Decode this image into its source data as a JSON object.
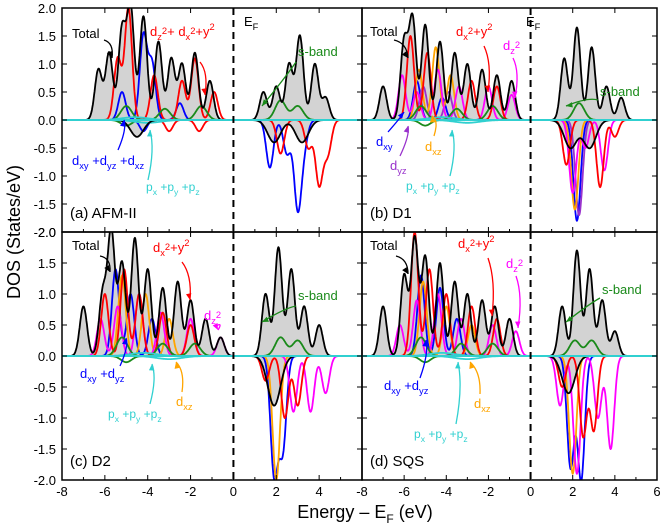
{
  "figure": {
    "ylabel": "DOS (States/eV)",
    "xlabel": "Energy – E",
    "xlabel_sub": "F",
    "xlabel_unit": " (eV)",
    "fermi_label": "E",
    "fermi_sub": "F"
  },
  "colors": {
    "total": "#000000",
    "total_fill": "#d3d3d3",
    "s": "#1a8a1a",
    "dz2": "#ff00ff",
    "dx2y2": "#ff0000",
    "dxy": "#0000ff",
    "dyz": "#9932cc",
    "dxz": "#ffa500",
    "p": "#30d0d0"
  },
  "chart_data": [
    {
      "type": "line",
      "panel_label": "(a) AFM-II",
      "x_range": [
        -8,
        6
      ],
      "ylim": [
        -2.0,
        2.0
      ],
      "xticks": [
        -8,
        -6,
        -4,
        -2,
        0,
        2,
        4,
        6
      ],
      "yticks": [
        "2.0",
        "1.5",
        "1.0",
        "0.5",
        "0.0",
        "-0.5",
        "-1.0",
        "-1.5",
        "-2.0"
      ],
      "fermi_level": 0,
      "peaks": {
        "total_up": [
          [
            -6.3,
            0.9
          ],
          [
            -5.8,
            1.2
          ],
          [
            -5.2,
            1.6
          ],
          [
            -4.8,
            2.0
          ],
          [
            -4.2,
            1.85
          ],
          [
            -3.5,
            1.4
          ],
          [
            -2.9,
            1.1
          ],
          [
            -2.4,
            1.0
          ],
          [
            -1.8,
            1.2
          ],
          [
            -1.1,
            0.7
          ],
          [
            1.4,
            0.5
          ],
          [
            2.0,
            0.6
          ],
          [
            2.6,
            1.0
          ],
          [
            3.1,
            1.5
          ],
          [
            3.8,
            1.0
          ],
          [
            4.3,
            0.4
          ]
        ],
        "total_down": [
          [
            -4.5,
            -0.3
          ],
          [
            1.9,
            -0.4
          ],
          [
            3.2,
            -0.4
          ]
        ],
        "s_up": [
          [
            -5.0,
            0.25
          ],
          [
            -3.2,
            0.2
          ],
          [
            -1.5,
            0.25
          ],
          [
            2.2,
            0.35
          ],
          [
            3.0,
            0.25
          ]
        ],
        "s_down": [
          [
            -5.0,
            -0.1
          ]
        ],
        "eg_up": [
          [
            -5.4,
            1.1
          ],
          [
            -4.9,
            2.0
          ],
          [
            -3.7,
            0.8
          ],
          [
            -2.4,
            0.7
          ],
          [
            -1.8,
            1.1
          ],
          [
            -0.9,
            0.5
          ]
        ],
        "eg_down": [
          [
            -3.0,
            -0.2
          ],
          [
            -1.6,
            -0.2
          ],
          [
            2.2,
            -0.6
          ],
          [
            3.5,
            -0.5
          ],
          [
            4.0,
            -1.15
          ],
          [
            4.4,
            -0.6
          ]
        ],
        "t2g_up": [
          [
            -5.2,
            0.5
          ],
          [
            -4.2,
            1.5
          ],
          [
            -3.8,
            1.0
          ],
          [
            -2.5,
            0.3
          ]
        ],
        "t2g_down": [
          [
            -4.2,
            -0.2
          ],
          [
            1.7,
            -0.85
          ],
          [
            2.5,
            -0.6
          ],
          [
            3.0,
            -1.55
          ],
          [
            3.3,
            -0.4
          ]
        ],
        "p_up": [
          [
            -4.6,
            0.05
          ]
        ],
        "p_down": [
          [
            -4.0,
            -0.05
          ]
        ]
      },
      "annotations": [
        {
          "text": "Total",
          "sub": ""
        },
        {
          "text": "d",
          "sub": "z",
          "extra": "2 + d",
          "extra2": "x",
          "tail": "2 + y 2"
        },
        {
          "text": "s-band"
        },
        {
          "text": "d xy + d yz + d xz"
        },
        {
          "text": "p x + p y + p z"
        }
      ]
    },
    {
      "type": "line",
      "panel_label": "(b) D1",
      "x_range": [
        -8,
        6
      ],
      "ylim": [
        -2.0,
        2.0
      ],
      "xticks": [
        -8,
        -6,
        -4,
        -2,
        0,
        2,
        4,
        6
      ],
      "fermi_level": 0,
      "peaks": {
        "total_up": [
          [
            -7.0,
            0.6
          ],
          [
            -6.0,
            1.4
          ],
          [
            -5.6,
            1.8
          ],
          [
            -5.0,
            1.7
          ],
          [
            -4.3,
            1.4
          ],
          [
            -3.6,
            1.2
          ],
          [
            -3.0,
            1.0
          ],
          [
            -2.3,
            0.9
          ],
          [
            -1.6,
            0.8
          ],
          [
            -0.9,
            0.7
          ],
          [
            1.6,
            1.1
          ],
          [
            2.2,
            1.65
          ],
          [
            2.9,
            1.3
          ],
          [
            3.6,
            0.6
          ],
          [
            4.3,
            0.4
          ]
        ],
        "total_down": [
          [
            1.9,
            -0.5
          ],
          [
            2.8,
            -0.5
          ]
        ],
        "s_up": [
          [
            -5.2,
            0.25
          ],
          [
            -3.5,
            0.2
          ],
          [
            -1.8,
            0.25
          ],
          [
            2.3,
            0.3
          ]
        ],
        "s_down": [
          [
            -5.0,
            -0.1
          ]
        ],
        "dz2_up": [
          [
            -6.1,
            0.8
          ],
          [
            -5.4,
            0.5
          ],
          [
            -4.4,
            0.9
          ],
          [
            -3.4,
            0.6
          ],
          [
            -2.0,
            0.6
          ],
          [
            -0.9,
            0.45
          ]
        ],
        "dz2_down": [
          [
            2.0,
            -1.3
          ],
          [
            2.6,
            -0.5
          ],
          [
            3.5,
            -0.9
          ]
        ],
        "dx2y2_up": [
          [
            -5.7,
            1.5
          ],
          [
            -4.9,
            1.2
          ],
          [
            -2.8,
            0.7
          ],
          [
            -1.6,
            0.6
          ]
        ],
        "dx2y2_down": [
          [
            1.7,
            -0.8
          ],
          [
            3.3,
            -1.2
          ],
          [
            4.0,
            -0.3
          ]
        ],
        "dxy_up": [
          [
            -5.4,
            0.7
          ],
          [
            -4.2,
            0.4
          ]
        ],
        "dxy_down": [
          [
            2.2,
            -1.8
          ]
        ],
        "dyz_up": [
          [
            -5.1,
            0.6
          ],
          [
            -3.9,
            0.5
          ]
        ],
        "dyz_down": [
          [
            2.3,
            -1.7
          ]
        ],
        "dxz_up": [
          [
            -5.3,
            0.9
          ],
          [
            -4.5,
            1.3
          ],
          [
            -3.8,
            0.8
          ]
        ],
        "dxz_down": [
          [
            2.1,
            -1.6
          ]
        ],
        "p_up": [
          [
            -4.2,
            0.05
          ]
        ],
        "p_down": [
          [
            -3.0,
            -0.05
          ]
        ]
      },
      "annotations": [
        {
          "text": "Total"
        },
        {
          "text": "d x2+y2"
        },
        {
          "text": "d z2"
        },
        {
          "text": "s-band"
        },
        {
          "text": "d xy"
        },
        {
          "text": "d yz"
        },
        {
          "text": "d xz"
        },
        {
          "text": "p x + p y + p z"
        }
      ]
    },
    {
      "type": "line",
      "panel_label": "(c) D2",
      "x_range": [
        -8,
        6
      ],
      "ylim": [
        -2.0,
        2.0
      ],
      "xticks": [
        -8,
        -6,
        -4,
        -2,
        0,
        2,
        4,
        6
      ],
      "yticks": [
        "2.0",
        "1.5",
        "1.0",
        "0.5",
        "0.0",
        "-0.5",
        "-1.0",
        "-1.5",
        "-2.0"
      ],
      "fermi_level": 0,
      "peaks": {
        "total_up": [
          [
            -7.0,
            0.8
          ],
          [
            -6.1,
            1.0
          ],
          [
            -5.7,
            2.0
          ],
          [
            -5.2,
            1.5
          ],
          [
            -4.6,
            1.9
          ],
          [
            -4.0,
            1.4
          ],
          [
            -3.3,
            1.1
          ],
          [
            -2.6,
            1.2
          ],
          [
            -2.0,
            0.9
          ],
          [
            -1.3,
            0.6
          ],
          [
            -0.6,
            0.3
          ],
          [
            1.5,
            1.0
          ],
          [
            2.1,
            1.75
          ],
          [
            2.7,
            1.4
          ],
          [
            3.3,
            0.8
          ],
          [
            4.0,
            0.5
          ]
        ],
        "total_down": [
          [
            1.9,
            -0.8
          ]
        ],
        "s_up": [
          [
            -5.2,
            0.3
          ],
          [
            -3.3,
            0.2
          ],
          [
            -1.8,
            0.2
          ],
          [
            2.2,
            0.3
          ],
          [
            3.0,
            0.25
          ]
        ],
        "s_down": [
          [
            -5.0,
            -0.1
          ]
        ],
        "dz2_up": [
          [
            -6.2,
            0.6
          ],
          [
            -5.4,
            0.8
          ],
          [
            -4.4,
            1.0
          ],
          [
            -3.4,
            0.7
          ],
          [
            -2.0,
            0.6
          ],
          [
            -0.6,
            0.3
          ]
        ],
        "dz2_down": [
          [
            2.8,
            -0.9
          ],
          [
            3.6,
            -0.9
          ],
          [
            4.3,
            -0.6
          ]
        ],
        "dx2y2_up": [
          [
            -6.0,
            1.0
          ],
          [
            -5.1,
            1.4
          ],
          [
            -4.4,
            1.0
          ],
          [
            -3.3,
            0.7
          ],
          [
            -2.0,
            0.5
          ]
        ],
        "dx2y2_down": [
          [
            1.5,
            -0.4
          ],
          [
            2.4,
            -1.0
          ],
          [
            3.0,
            -0.8
          ]
        ],
        "t2g_up": [
          [
            -5.5,
            1.4
          ],
          [
            -4.8,
            1.0
          ],
          [
            -3.8,
            0.6
          ]
        ],
        "t2g_down": [
          [
            1.9,
            -1.9
          ],
          [
            2.3,
            -1.5
          ]
        ],
        "dxz_up": [
          [
            -5.2,
            1.3
          ],
          [
            -4.1,
            1.0
          ],
          [
            -3.0,
            0.6
          ]
        ],
        "dxz_down": [
          [
            2.0,
            -2.0
          ]
        ],
        "p_up": [
          [
            -4.2,
            0.05
          ]
        ],
        "p_down": [
          [
            -3.0,
            -0.05
          ]
        ]
      },
      "annotations": [
        {
          "text": "Total"
        },
        {
          "text": "d x2+y2"
        },
        {
          "text": "d z2"
        },
        {
          "text": "s-band"
        },
        {
          "text": "d xy + d yz"
        },
        {
          "text": "d xz"
        },
        {
          "text": "p x + p y + p z"
        }
      ]
    },
    {
      "type": "line",
      "panel_label": "(d) SQS",
      "x_range": [
        -8,
        6
      ],
      "ylim": [
        -2.0,
        2.0
      ],
      "xticks": [
        -8,
        -6,
        -4,
        -2,
        0,
        2,
        4,
        6
      ],
      "fermi_level": 0,
      "peaks": {
        "total_up": [
          [
            -7.0,
            0.8
          ],
          [
            -6.0,
            1.3
          ],
          [
            -5.5,
            1.9
          ],
          [
            -5.0,
            1.6
          ],
          [
            -4.3,
            1.5
          ],
          [
            -3.6,
            1.2
          ],
          [
            -3.0,
            1.0
          ],
          [
            -2.3,
            0.9
          ],
          [
            -1.7,
            0.8
          ],
          [
            -1.0,
            0.6
          ],
          [
            1.5,
            0.8
          ],
          [
            2.2,
            1.7
          ],
          [
            2.8,
            1.4
          ],
          [
            3.4,
            0.9
          ],
          [
            4.0,
            0.4
          ]
        ],
        "total_down": [
          [
            1.8,
            -0.6
          ]
        ],
        "s_up": [
          [
            -5.2,
            0.3
          ],
          [
            -3.3,
            0.2
          ],
          [
            -1.8,
            0.2
          ],
          [
            2.1,
            0.25
          ],
          [
            2.9,
            0.25
          ]
        ],
        "s_down": [
          [
            -5.0,
            -0.1
          ]
        ],
        "dz2_up": [
          [
            -6.2,
            0.5
          ],
          [
            -5.4,
            0.9
          ],
          [
            -4.4,
            1.0
          ],
          [
            -3.3,
            0.6
          ],
          [
            -1.8,
            0.5
          ],
          [
            -0.7,
            0.4
          ]
        ],
        "dz2_down": [
          [
            1.4,
            -0.8
          ],
          [
            2.2,
            -1.9
          ],
          [
            3.2,
            -1.0
          ],
          [
            3.8,
            -1.5
          ]
        ],
        "dx2y2_up": [
          [
            -5.5,
            2.0
          ],
          [
            -4.8,
            1.4
          ],
          [
            -4.0,
            1.0
          ],
          [
            -2.8,
            0.8
          ],
          [
            -1.6,
            0.6
          ]
        ],
        "dx2y2_down": [
          [
            1.5,
            -0.5
          ],
          [
            2.5,
            -1.3
          ],
          [
            3.0,
            -1.2
          ]
        ],
        "t2g_up": [
          [
            -5.2,
            1.3
          ],
          [
            -4.3,
            1.1
          ],
          [
            -3.5,
            0.6
          ]
        ],
        "t2g_down": [
          [
            1.9,
            -1.8
          ],
          [
            2.4,
            -2.0
          ]
        ],
        "dxz_up": [
          [
            -5.1,
            1.2
          ],
          [
            -4.0,
            0.8
          ],
          [
            -2.8,
            0.5
          ]
        ],
        "dxz_down": [
          [
            2.0,
            -1.9
          ]
        ],
        "p_up": [
          [
            -4.2,
            0.05
          ]
        ],
        "p_down": [
          [
            -3.0,
            -0.05
          ]
        ]
      },
      "annotations": [
        {
          "text": "Total"
        },
        {
          "text": "d x2+y2"
        },
        {
          "text": "d z2"
        },
        {
          "text": "s-band"
        },
        {
          "text": "d xy + d yz"
        },
        {
          "text": "d xz"
        },
        {
          "text": "p x + p y + p z"
        }
      ]
    }
  ]
}
